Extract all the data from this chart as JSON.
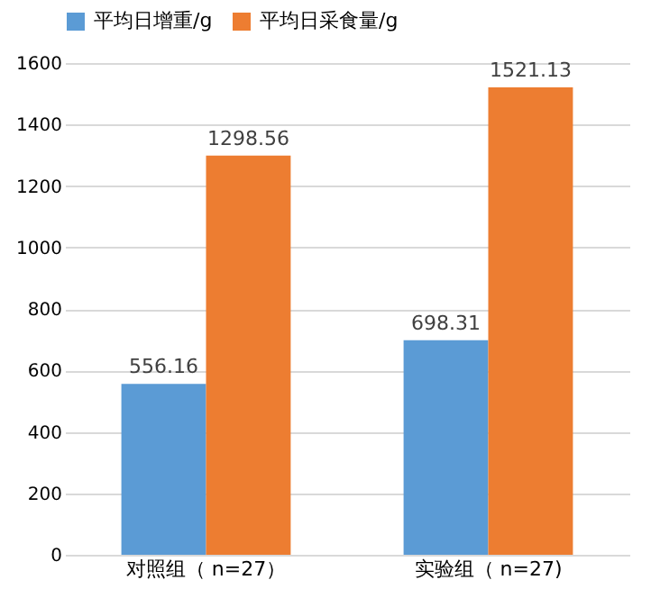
{
  "chart_data": {
    "type": "bar",
    "categories": [
      "对照组（ n=27）",
      "实验组（ n=27)"
    ],
    "series": [
      {
        "name": "平均日增重/g",
        "color": "#5b9bd5",
        "values": [
          556.16,
          698.31
        ]
      },
      {
        "name": "平均日采食量/g",
        "color": "#ed7d31",
        "values": [
          1298.56,
          1521.13
        ]
      }
    ],
    "ylim": [
      0,
      1600
    ],
    "yticks": [
      0,
      200,
      400,
      600,
      800,
      1000,
      1200,
      1400,
      1600
    ],
    "grid": "y",
    "legend": "top",
    "data_labels": true
  }
}
